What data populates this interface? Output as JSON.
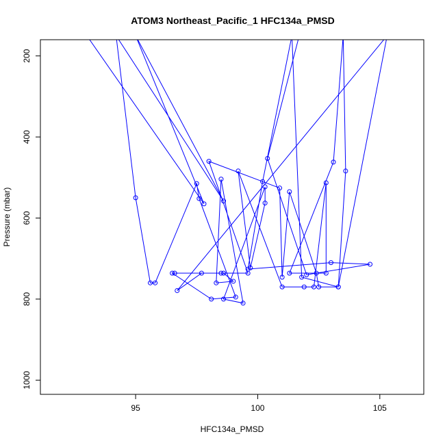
{
  "chart_data": {
    "type": "line",
    "title": "ATOM3 Northeast_Pacific_1 HFC134a_PMSD",
    "xlabel": "HFC134a_PMSD",
    "ylabel": "Pressure (mbar)",
    "xlim": [
      91.1,
      106.8
    ],
    "ylim": [
      1035,
      160
    ],
    "y_reversed": true,
    "x_ticks": [
      95,
      100,
      105
    ],
    "y_ticks": [
      200,
      400,
      600,
      800,
      1000
    ],
    "series": [
      {
        "color": "#0000ff",
        "marker": "open-circle",
        "points": [
          {
            "x": 93.0,
            "y": 150
          },
          {
            "x": 97.8,
            "y": 565
          },
          {
            "x": 95.0,
            "y": 150
          },
          {
            "x": 98.6,
            "y": 558
          },
          {
            "x": 94.2,
            "y": 150
          },
          {
            "x": 95.0,
            "y": 550
          },
          {
            "x": 95.6,
            "y": 760
          },
          {
            "x": 95.8,
            "y": 760
          },
          {
            "x": 97.5,
            "y": 515
          },
          {
            "x": 97.6,
            "y": 552
          },
          {
            "x": 99.1,
            "y": 795
          },
          {
            "x": 98.1,
            "y": 800
          },
          {
            "x": 96.5,
            "y": 736
          },
          {
            "x": 96.6,
            "y": 736
          },
          {
            "x": 98.5,
            "y": 736
          },
          {
            "x": 99.6,
            "y": 736
          },
          {
            "x": 98.0,
            "y": 460
          },
          {
            "x": 100.9,
            "y": 526
          },
          {
            "x": 101.0,
            "y": 746
          },
          {
            "x": 101.3,
            "y": 535
          },
          {
            "x": 102.4,
            "y": 736
          },
          {
            "x": 102.5,
            "y": 770
          },
          {
            "x": 103.3,
            "y": 770
          },
          {
            "x": 105.3,
            "y": 150
          },
          {
            "x": 96.7,
            "y": 779
          },
          {
            "x": 97.7,
            "y": 736
          },
          {
            "x": 98.6,
            "y": 736
          },
          {
            "x": 99.0,
            "y": 756
          },
          {
            "x": 98.3,
            "y": 760
          },
          {
            "x": 98.5,
            "y": 504
          },
          {
            "x": 99.4,
            "y": 810
          },
          {
            "x": 98.6,
            "y": 800
          },
          {
            "x": 100.3,
            "y": 523
          },
          {
            "x": 100.3,
            "y": 563
          },
          {
            "x": 99.7,
            "y": 723
          },
          {
            "x": 99.2,
            "y": 484
          },
          {
            "x": 101.0,
            "y": 770
          },
          {
            "x": 101.9,
            "y": 770
          },
          {
            "x": 102.3,
            "y": 770
          },
          {
            "x": 102.8,
            "y": 513
          },
          {
            "x": 102.8,
            "y": 736
          },
          {
            "x": 101.3,
            "y": 736
          },
          {
            "x": 103.1,
            "y": 462
          },
          {
            "x": 103.5,
            "y": 150
          },
          {
            "x": 103.6,
            "y": 484
          },
          {
            "x": 103.3,
            "y": 770
          },
          {
            "x": 101.8,
            "y": 746
          },
          {
            "x": 101.4,
            "y": 150
          },
          {
            "x": 100.2,
            "y": 510
          },
          {
            "x": 99.6,
            "y": 726
          },
          {
            "x": 103.0,
            "y": 710
          },
          {
            "x": 104.6,
            "y": 714
          },
          {
            "x": 102.0,
            "y": 740
          },
          {
            "x": 100.4,
            "y": 453
          },
          {
            "x": 101.7,
            "y": 150
          }
        ]
      }
    ]
  }
}
